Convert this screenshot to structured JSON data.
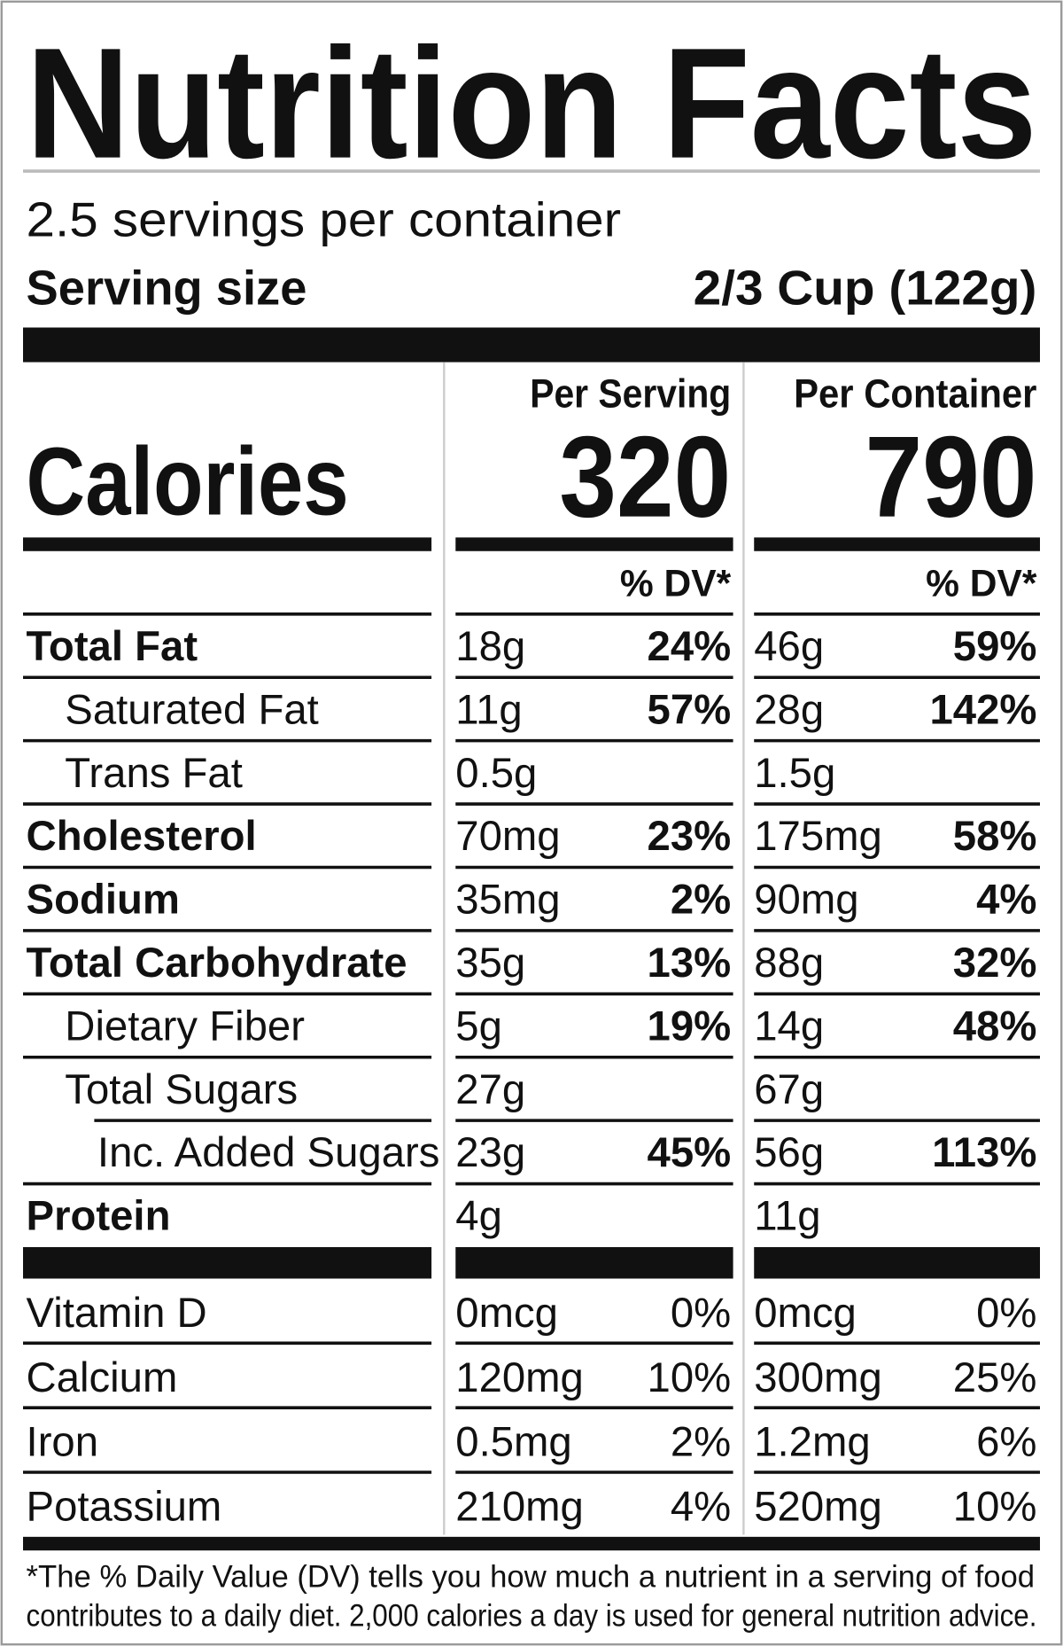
{
  "title": "Nutrition Facts",
  "servings": "2.5 servings per container",
  "serving_size": {
    "label": "Serving size",
    "value": "2/3 Cup (122g)"
  },
  "calories": {
    "label": "Calories",
    "per_serving_header": "Per Serving",
    "per_serving": 320,
    "per_container_header": "Per Container",
    "per_container": 790
  },
  "dv_header": {
    "per_serving": "% DV*",
    "per_container": "% DV*"
  },
  "nutrients": [
    {
      "name": "Total Fat",
      "bold": true,
      "indent": 0,
      "serving_amount": "18g",
      "serving_dv": "24%",
      "container_amount": "46g",
      "container_dv": "59%"
    },
    {
      "name": "Saturated Fat",
      "bold": false,
      "indent": 1,
      "serving_amount": "11g",
      "serving_dv": "57%",
      "container_amount": "28g",
      "container_dv": "142%"
    },
    {
      "name": "Trans Fat",
      "bold": false,
      "indent": 1,
      "serving_amount": "0.5g",
      "serving_dv": null,
      "container_amount": "1.5g",
      "container_dv": null
    },
    {
      "name": "Cholesterol",
      "bold": true,
      "indent": 0,
      "serving_amount": "70mg",
      "serving_dv": "23%",
      "container_amount": "175mg",
      "container_dv": "58%"
    },
    {
      "name": "Sodium",
      "bold": true,
      "indent": 0,
      "serving_amount": "35mg",
      "serving_dv": "2%",
      "container_amount": "90mg",
      "container_dv": "4%"
    },
    {
      "name": "Total Carbohydrate",
      "bold": true,
      "indent": 0,
      "serving_amount": "35g",
      "serving_dv": "13%",
      "container_amount": "88g",
      "container_dv": "32%"
    },
    {
      "name": "Dietary Fiber",
      "bold": false,
      "indent": 1,
      "serving_amount": "5g",
      "serving_dv": "19%",
      "container_amount": "14g",
      "container_dv": "48%"
    },
    {
      "name": "Total Sugars",
      "bold": false,
      "indent": 1,
      "serving_amount": "27g",
      "serving_dv": null,
      "container_amount": "67g",
      "container_dv": null
    },
    {
      "name": "Inc. Added Sugars",
      "bold": false,
      "indent": 2,
      "serving_amount": "23g",
      "serving_dv": "45%",
      "container_amount": "56g",
      "container_dv": "113%"
    },
    {
      "name": "Protein",
      "bold": true,
      "indent": 0,
      "serving_amount": "4g",
      "serving_dv": null,
      "container_amount": "11g",
      "container_dv": null
    }
  ],
  "vitamins": [
    {
      "name": "Vitamin D",
      "serving_amount": "0mcg",
      "serving_dv": "0%",
      "container_amount": "0mcg",
      "container_dv": "0%"
    },
    {
      "name": "Calcium",
      "serving_amount": "120mg",
      "serving_dv": "10%",
      "container_amount": "300mg",
      "container_dv": "25%"
    },
    {
      "name": "Iron",
      "serving_amount": "0.5mg",
      "serving_dv": "2%",
      "container_amount": "1.2mg",
      "container_dv": "6%"
    },
    {
      "name": "Potassium",
      "serving_amount": "210mg",
      "serving_dv": "4%",
      "container_amount": "520mg",
      "container_dv": "10%"
    }
  ],
  "footnote": [
    "*The % Daily Value (DV) tells you how much a nutrient in a serving of food",
    "contributes to a daily diet. 2,000 calories a day is used for general nutrition advice."
  ]
}
